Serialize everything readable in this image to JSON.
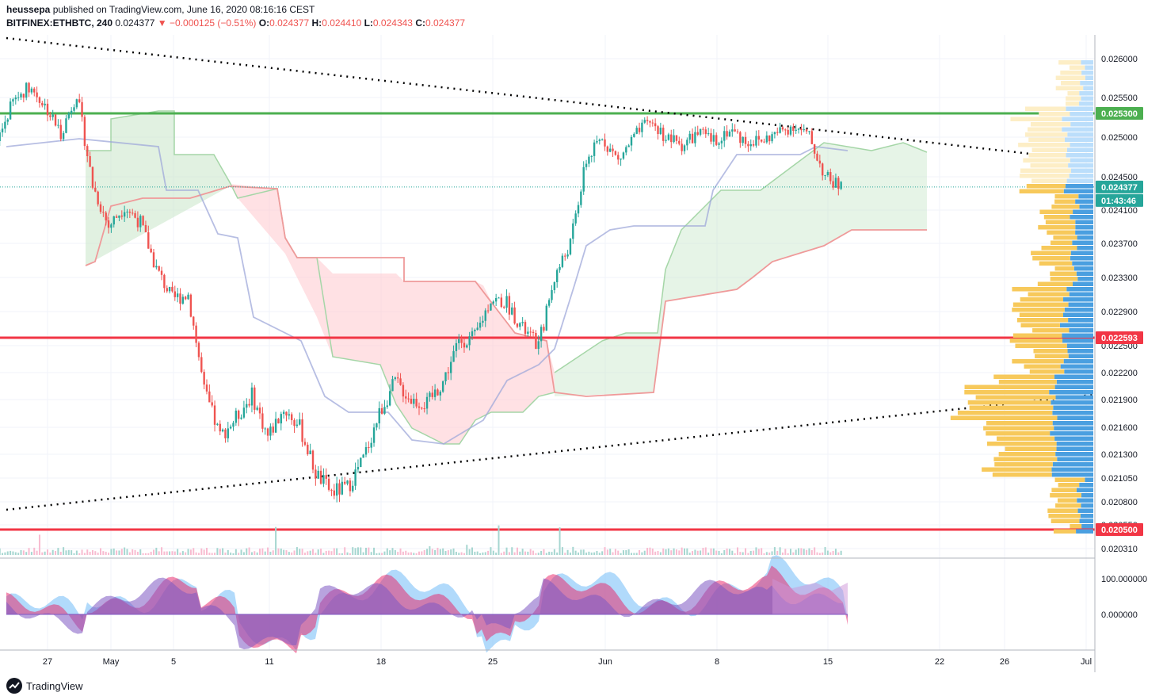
{
  "header": {
    "publisher": "heussepa",
    "published_text": "published on TradingView.com, June 16, 2020 08:16:16 CEST",
    "symbol": "BITFINEX:ETHBTC, 240",
    "last": "0.024377",
    "change": "−0.000125 (−0.51%)",
    "o_label": "O:",
    "o_value": "0.024377",
    "h_label": "H:",
    "h_value": "0.024410",
    "l_label": "L:",
    "l_value": "0.024343",
    "c_label": "C:",
    "c_value": "0.024377"
  },
  "footer": {
    "brand": "TradingView"
  },
  "colors": {
    "up": "#26a69a",
    "down": "#ef5350",
    "green_line": "#4caf50",
    "red_line": "#f23645",
    "teal_badge": "#26a69a",
    "volume_profile_blue": "#4a9fe0",
    "volume_profile_yellow": "#f7c95b"
  },
  "chart_data": {
    "type": "candlestick",
    "y_axis_ticks": [
      "0.026000",
      "0.025500",
      "0.025000",
      "0.024500",
      "0.024100",
      "0.023700",
      "0.023300",
      "0.022900",
      "0.022500",
      "0.022200",
      "0.021900",
      "0.021600",
      "0.021300",
      "0.021050",
      "0.020800",
      "0.020550",
      "0.020310"
    ],
    "x_axis_ticks": [
      "27",
      "May",
      "5",
      "11",
      "18",
      "25",
      "Jun",
      "8",
      "15",
      "22",
      "26",
      "Jul"
    ],
    "ylim": [
      0.0202,
      0.0262
    ],
    "levels": [
      {
        "label": "0.025300",
        "value": 0.0253,
        "color": "#4caf50"
      },
      {
        "label": "0.022593",
        "value": 0.022593,
        "color": "#f23645"
      },
      {
        "label": "0.020500",
        "value": 0.0205,
        "color": "#f23645"
      }
    ],
    "last_price": {
      "label": "0.024377",
      "countdown": "01:43:46"
    },
    "price_path": [
      [
        "2020-04-24",
        0.02495
      ],
      [
        "2020-04-25",
        0.02545
      ],
      [
        "2020-04-26",
        0.02565
      ],
      [
        "2020-04-27",
        0.0254
      ],
      [
        "2020-04-28",
        0.02505
      ],
      [
        "2020-04-29",
        0.02555
      ],
      [
        "2020-04-30",
        0.0244
      ],
      [
        "2020-05-01",
        0.0239
      ],
      [
        "2020-05-02",
        0.02415
      ],
      [
        "2020-05-03",
        0.02395
      ],
      [
        "2020-05-04",
        0.0234
      ],
      [
        "2020-05-05",
        0.02305
      ],
      [
        "2020-05-06",
        0.0231
      ],
      [
        "2020-05-07",
        0.022
      ],
      [
        "2020-05-08",
        0.0215
      ],
      [
        "2020-05-09",
        0.0217
      ],
      [
        "2020-05-10",
        0.02195
      ],
      [
        "2020-05-11",
        0.0215
      ],
      [
        "2020-05-12",
        0.0218
      ],
      [
        "2020-05-13",
        0.0216
      ],
      [
        "2020-05-14",
        0.0211
      ],
      [
        "2020-05-15",
        0.0209
      ],
      [
        "2020-05-16",
        0.02095
      ],
      [
        "2020-05-17",
        0.02125
      ],
      [
        "2020-05-18",
        0.02175
      ],
      [
        "2020-05-19",
        0.0221
      ],
      [
        "2020-05-20",
        0.0219
      ],
      [
        "2020-05-21",
        0.02185
      ],
      [
        "2020-05-22",
        0.0221
      ],
      [
        "2020-05-23",
        0.02255
      ],
      [
        "2020-05-24",
        0.0226
      ],
      [
        "2020-05-25",
        0.02305
      ],
      [
        "2020-05-26",
        0.023
      ],
      [
        "2020-05-27",
        0.0227
      ],
      [
        "2020-05-28",
        0.0225
      ],
      [
        "2020-05-29",
        0.0233
      ],
      [
        "2020-05-30",
        0.0237
      ],
      [
        "2020-05-31",
        0.0247
      ],
      [
        "2020-06-01",
        0.025
      ],
      [
        "2020-06-02",
        0.0247
      ],
      [
        "2020-06-03",
        0.025
      ],
      [
        "2020-06-04",
        0.0252
      ],
      [
        "2020-06-05",
        0.025
      ],
      [
        "2020-06-06",
        0.0249
      ],
      [
        "2020-06-07",
        0.02505
      ],
      [
        "2020-06-08",
        0.02495
      ],
      [
        "2020-06-09",
        0.0251
      ],
      [
        "2020-06-10",
        0.02495
      ],
      [
        "2020-06-11",
        0.02495
      ],
      [
        "2020-06-12",
        0.02505
      ],
      [
        "2020-06-13",
        0.02515
      ],
      [
        "2020-06-14",
        0.025
      ],
      [
        "2020-06-15",
        0.0245
      ],
      [
        "2020-06-16",
        0.024377
      ]
    ],
    "oscillator_ticks": [
      "100.000000",
      "0.000000"
    ]
  }
}
